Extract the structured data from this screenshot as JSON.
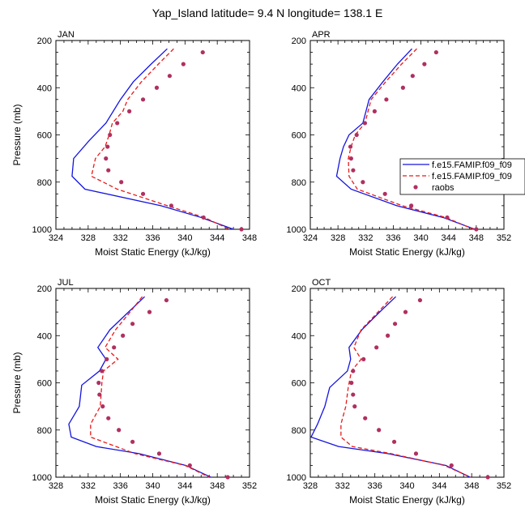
{
  "figure_title": "Yap_Island  latitude= 9.4 N longitude= 138.1 E",
  "colors": {
    "model1": "#1414e0",
    "model2": "#e81a1a",
    "obs": "#b03060"
  },
  "legend": {
    "entries": [
      "f.e15.FAMIP.f09_f09",
      "f.e15.FAMIP.f09_f09",
      "raobs"
    ]
  },
  "chart_data": [
    {
      "type": "line",
      "panel_label": "JAN",
      "xlabel": "Moist Static Energy (kJ/kg)",
      "ylabel": "Pressure (mb)",
      "xlim": [
        324,
        348
      ],
      "ylim": [
        200,
        1000
      ],
      "xticks": [
        324,
        328,
        332,
        336,
        340,
        344,
        348
      ],
      "yticks": [
        200,
        400,
        600,
        800,
        1000
      ],
      "series": [
        {
          "name": "f.e15.FAMIP.f09_f09",
          "pressure": [
            235,
            300,
            375,
            450,
            550,
            625,
            700,
            775,
            830,
            900,
            950,
            1000
          ],
          "mse": [
            337.8,
            335.8,
            333.6,
            332.0,
            330.2,
            328.1,
            326.2,
            326.0,
            327.6,
            337.0,
            342.0,
            346.0
          ]
        },
        {
          "name": "f.e15.FAMIP.f09_f09",
          "pressure": [
            235,
            300,
            375,
            450,
            500,
            550,
            600,
            650,
            700,
            775,
            830,
            900,
            950,
            1000
          ],
          "mse": [
            338.6,
            336.7,
            334.6,
            332.9,
            332.3,
            331.0,
            330.6,
            330.1,
            328.9,
            328.4,
            331.6,
            337.8,
            342.4,
            345.5
          ]
        },
        {
          "name": "raobs",
          "pressure": [
            250,
            300,
            350,
            400,
            450,
            500,
            550,
            600,
            650,
            700,
            750,
            800,
            850,
            900,
            950,
            1000
          ],
          "mse": [
            342.2,
            339.8,
            338.1,
            336.5,
            334.8,
            333.1,
            331.6,
            330.7,
            330.4,
            330.2,
            330.5,
            332.1,
            334.8,
            338.3,
            342.3,
            347.0
          ]
        }
      ]
    },
    {
      "type": "line",
      "panel_label": "APR",
      "xlabel": "Moist Static Energy (kJ/kg)",
      "ylabel": "",
      "xlim": [
        324,
        352
      ],
      "ylim": [
        200,
        1000
      ],
      "xticks": [
        324,
        328,
        332,
        336,
        340,
        344,
        348,
        352
      ],
      "yticks": [
        200,
        400,
        600,
        800,
        1000
      ],
      "series": [
        {
          "name": "f.e15.FAMIP.f09_f09",
          "pressure": [
            235,
            300,
            375,
            450,
            550,
            600,
            650,
            700,
            775,
            830,
            900,
            950,
            1000
          ],
          "mse": [
            338.7,
            336.6,
            334.5,
            332.5,
            331.6,
            329.6,
            328.8,
            328.3,
            327.8,
            329.9,
            336.5,
            343.2,
            347.8
          ]
        },
        {
          "name": "f.e15.FAMIP.f09_f09",
          "pressure": [
            235,
            300,
            375,
            450,
            550,
            600,
            650,
            700,
            775,
            830,
            900,
            950,
            1000
          ],
          "mse": [
            339.4,
            337.2,
            334.9,
            332.8,
            331.9,
            330.5,
            329.9,
            329.5,
            329.6,
            330.8,
            337.3,
            343.6,
            347.6
          ]
        },
        {
          "name": "raobs",
          "pressure": [
            250,
            300,
            350,
            400,
            450,
            500,
            550,
            600,
            650,
            700,
            750,
            800,
            850,
            900,
            950,
            1000
          ],
          "mse": [
            342.2,
            340.5,
            338.8,
            337.4,
            335.0,
            333.3,
            331.9,
            330.7,
            329.8,
            329.9,
            330.2,
            331.6,
            334.8,
            338.6,
            343.8,
            348.0
          ]
        }
      ]
    },
    {
      "type": "line",
      "panel_label": "JUL",
      "xlabel": "Moist Static Energy (kJ/kg)",
      "ylabel": "Pressure (mb)",
      "xlim": [
        328,
        352
      ],
      "ylim": [
        200,
        1000
      ],
      "xticks": [
        328,
        332,
        336,
        340,
        344,
        348,
        352
      ],
      "yticks": [
        200,
        400,
        600,
        800,
        1000
      ],
      "series": [
        {
          "name": "f.e15.FAMIP.f09_f09",
          "pressure": [
            235,
            300,
            375,
            450,
            500,
            550,
            610,
            700,
            775,
            830,
            870,
            900,
            950,
            1000
          ],
          "mse": [
            339.0,
            337.0,
            334.7,
            333.2,
            334.2,
            333.4,
            331.2,
            330.9,
            329.6,
            329.9,
            333.0,
            338.3,
            344.1,
            347.2
          ]
        },
        {
          "name": "f.e15.FAMIP.f09_f09",
          "pressure": [
            235,
            300,
            375,
            450,
            500,
            550,
            600,
            700,
            775,
            830,
            900,
            950,
            1000
          ],
          "mse": [
            338.7,
            337.2,
            335.4,
            334.1,
            335.7,
            333.9,
            333.7,
            333.5,
            332.3,
            332.3,
            337.8,
            344.0,
            347.0
          ]
        },
        {
          "name": "raobs",
          "pressure": [
            250,
            300,
            350,
            400,
            450,
            500,
            550,
            600,
            650,
            700,
            750,
            800,
            850,
            900,
            950,
            1000
          ],
          "mse": [
            341.7,
            339.6,
            337.5,
            336.3,
            335.2,
            334.3,
            333.7,
            333.3,
            333.4,
            333.8,
            334.5,
            335.8,
            337.5,
            340.8,
            344.6,
            349.3
          ]
        }
      ]
    },
    {
      "type": "line",
      "panel_label": "OCT",
      "xlabel": "Moist Static Energy (kJ/kg)",
      "ylabel": "",
      "xlim": [
        328,
        352
      ],
      "ylim": [
        200,
        1000
      ],
      "xticks": [
        328,
        332,
        336,
        340,
        344,
        348,
        352
      ],
      "yticks": [
        200,
        400,
        600,
        800,
        1000
      ],
      "series": [
        {
          "name": "f.e15.FAMIP.f09_f09",
          "pressure": [
            235,
            300,
            375,
            450,
            500,
            550,
            620,
            700,
            775,
            830,
            870,
            900,
            950,
            1000
          ],
          "mse": [
            338.6,
            336.6,
            334.4,
            332.8,
            333.0,
            332.6,
            330.4,
            329.8,
            328.9,
            328.1,
            331.5,
            337.6,
            344.8,
            347.8
          ]
        },
        {
          "name": "f.e15.FAMIP.f09_f09",
          "pressure": [
            235,
            300,
            375,
            450,
            500,
            550,
            620,
            700,
            775,
            830,
            870,
            900,
            950,
            1000
          ],
          "mse": [
            338.2,
            336.4,
            334.3,
            333.4,
            334.3,
            333.1,
            332.7,
            332.4,
            331.8,
            331.8,
            333.2,
            338.0,
            344.6,
            347.9
          ]
        },
        {
          "name": "raobs",
          "pressure": [
            250,
            300,
            350,
            400,
            450,
            500,
            550,
            600,
            650,
            700,
            750,
            800,
            850,
            900,
            950,
            1000
          ],
          "mse": [
            341.6,
            339.8,
            338.5,
            337.6,
            336.2,
            334.6,
            333.3,
            333.1,
            333.3,
            333.5,
            334.8,
            336.5,
            338.4,
            341.1,
            345.5,
            350.0
          ]
        }
      ]
    }
  ]
}
